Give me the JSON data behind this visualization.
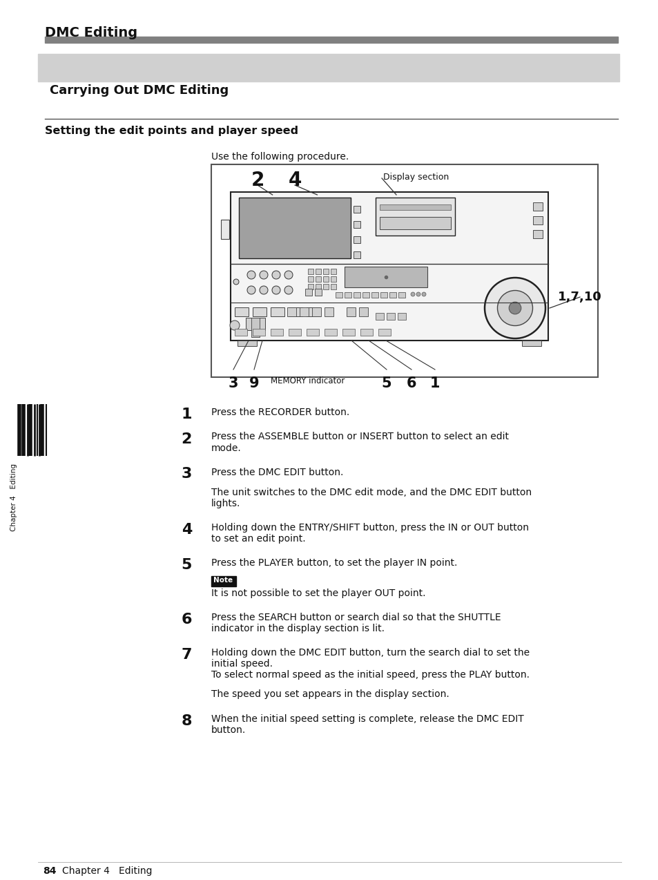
{
  "bg": "#ffffff",
  "header_title": "DMC Editing",
  "header_bar_color": "#808080",
  "section_bg": "#d0d0d0",
  "section_title": "Carrying Out DMC Editing",
  "sub_title": "Setting the edit points and player speed",
  "intro": "Use the following procedure.",
  "steps": [
    {
      "n": "1",
      "main": "Press the RECORDER button.",
      "extra": "",
      "note": ""
    },
    {
      "n": "2",
      "main": "Press the ASSEMBLE button or INSERT button to select an edit\nmode.",
      "extra": "",
      "note": ""
    },
    {
      "n": "3",
      "main": "Press the DMC EDIT button.",
      "extra": "The unit switches to the DMC edit mode, and the DMC EDIT button\nlights.",
      "note": ""
    },
    {
      "n": "4",
      "main": "Holding down the ENTRY/SHIFT button, press the IN or OUT button\nto set an edit point.",
      "extra": "",
      "note": ""
    },
    {
      "n": "5",
      "main": "Press the PLAYER button, to set the player IN point.",
      "extra": "",
      "note": "It is not possible to set the player OUT point."
    },
    {
      "n": "6",
      "main": "Press the SEARCH button or search dial so that the SHUTTLE\nindicator in the display section is lit.",
      "extra": "",
      "note": ""
    },
    {
      "n": "7",
      "main": "Holding down the DMC EDIT button, turn the search dial to set the\ninitial speed.\nTo select normal speed as the initial speed, press the PLAY button.",
      "extra": "The speed you set appears in the display section.",
      "note": ""
    },
    {
      "n": "8",
      "main": "When the initial speed setting is complete, release the DMC EDIT\nbutton.",
      "extra": "",
      "note": ""
    }
  ],
  "page_num": "84",
  "chapter_text": "Chapter 4   Editing"
}
